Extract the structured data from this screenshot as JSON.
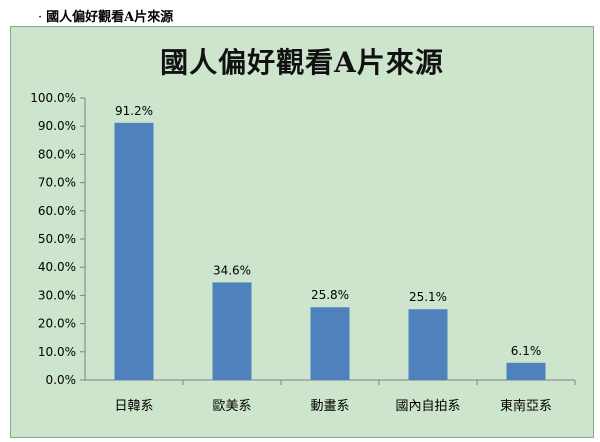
{
  "caption": "國人偏好觀看A片來源",
  "chart_data": {
    "type": "bar",
    "title": "國人偏好觀看A片來源",
    "categories": [
      "日韓系",
      "歐美系",
      "動畫系",
      "國內自拍系",
      "東南亞系"
    ],
    "values": [
      91.2,
      34.6,
      25.8,
      25.1,
      6.1
    ],
    "value_labels": [
      "91.2%",
      "34.6%",
      "25.8%",
      "25.1%",
      "6.1%"
    ],
    "ylim": [
      0,
      100
    ],
    "yticks": [
      "0.0%",
      "10.0%",
      "20.0%",
      "30.0%",
      "40.0%",
      "50.0%",
      "60.0%",
      "70.0%",
      "80.0%",
      "90.0%",
      "100.0%"
    ],
    "grid": false,
    "legend": "none",
    "bar_color": "#4f81bd",
    "background_color": "#cde5cd"
  }
}
